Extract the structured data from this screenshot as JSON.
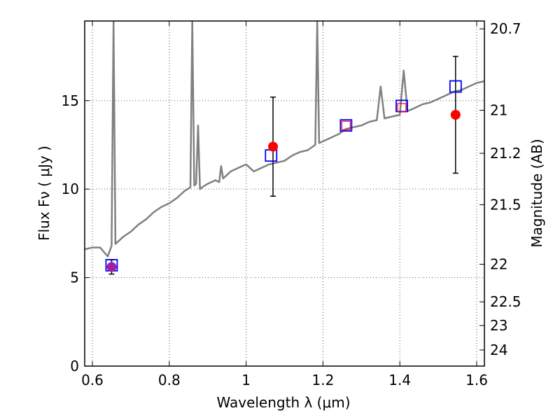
{
  "chart_data": {
    "type": "scatter",
    "xlabel": "Wavelength  λ (μm)",
    "ylabel": "Flux  Fν  ( μJy )",
    "y2label": "Magnitude (AB)",
    "xlim": [
      0.58,
      1.62
    ],
    "ylim": [
      0,
      19.5
    ],
    "grid": true,
    "x_ticks": [
      0.6,
      0.8,
      1.0,
      1.2,
      1.4,
      1.6
    ],
    "x_tick_labels": [
      "0.6",
      "0.8",
      "1",
      "1.2",
      "1.4",
      "1.6"
    ],
    "y_ticks": [
      0,
      5,
      10,
      15
    ],
    "y_tick_labels": [
      "0",
      "5",
      "10",
      "15"
    ],
    "y2_ticks": [
      20.7,
      21.0,
      21.2,
      21.5,
      22.0,
      22.5,
      23.0,
      24.0
    ],
    "y2_tick_labels": [
      "20.7",
      "21",
      "21.2",
      "21.5",
      "22",
      "22.5",
      "23",
      "24"
    ],
    "colors": {
      "spectrum": "#808080",
      "observed": "#ff0000",
      "model": "#0000ff",
      "first_point": "#a020a0",
      "errorbar": "#000000",
      "grid": "#555555"
    },
    "series": [
      {
        "kind": "spectrum",
        "x": [
          0.58,
          0.6,
          0.62,
          0.64,
          0.65,
          0.655,
          0.66,
          0.68,
          0.7,
          0.72,
          0.74,
          0.76,
          0.78,
          0.8,
          0.82,
          0.84,
          0.855,
          0.86,
          0.865,
          0.87,
          0.875,
          0.88,
          0.885,
          0.9,
          0.92,
          0.93,
          0.935,
          0.94,
          0.96,
          0.98,
          1.0,
          1.02,
          1.04,
          1.06,
          1.08,
          1.1,
          1.12,
          1.14,
          1.16,
          1.18,
          1.185,
          1.19,
          1.2,
          1.22,
          1.24,
          1.26,
          1.28,
          1.3,
          1.32,
          1.34,
          1.35,
          1.36,
          1.38,
          1.4,
          1.41,
          1.42,
          1.44,
          1.46,
          1.48,
          1.5,
          1.52,
          1.54,
          1.56,
          1.58,
          1.6,
          1.62
        ],
        "y": [
          6.6,
          6.7,
          6.7,
          6.2,
          6.8,
          19.5,
          6.9,
          7.3,
          7.6,
          8.0,
          8.3,
          8.7,
          9.0,
          9.2,
          9.5,
          9.9,
          10.1,
          19.5,
          10.2,
          10.3,
          13.6,
          10.0,
          10.1,
          10.3,
          10.5,
          10.4,
          11.3,
          10.6,
          11.0,
          11.2,
          11.4,
          11.0,
          11.2,
          11.4,
          11.5,
          11.6,
          11.9,
          12.1,
          12.2,
          12.5,
          19.5,
          12.6,
          12.7,
          12.9,
          13.1,
          13.4,
          13.5,
          13.6,
          13.8,
          13.9,
          15.8,
          14.0,
          14.1,
          14.2,
          16.7,
          14.4,
          14.6,
          14.8,
          14.9,
          15.1,
          15.3,
          15.5,
          15.6,
          15.8,
          16.0,
          16.1
        ]
      },
      {
        "kind": "observed",
        "x": [
          0.65,
          1.07,
          1.26,
          1.405,
          1.545
        ],
        "y": [
          5.6,
          12.4,
          13.6,
          14.6,
          14.2
        ],
        "yerr": [
          0.4,
          2.8,
          0.0,
          0.0,
          3.3
        ]
      },
      {
        "kind": "model",
        "x": [
          0.65,
          1.065,
          1.26,
          1.405,
          1.545
        ],
        "y": [
          5.7,
          11.9,
          13.6,
          14.7,
          15.8
        ]
      }
    ]
  }
}
